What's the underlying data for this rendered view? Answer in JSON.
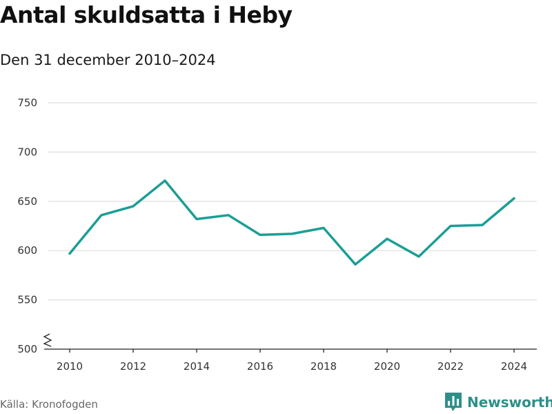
{
  "title": "Antal skuldsatta i Heby",
  "subtitle": "Den 31 december 2010–2024",
  "source": "Källa: Kronofogden",
  "brand": {
    "name": "Newsworthy",
    "icon": "bar-chart-logo-icon"
  },
  "colors": {
    "line": "#1a9e95",
    "grid": "#dddddd",
    "axis": "#222222",
    "brand": "#2e8f88"
  },
  "chart_data": {
    "type": "line",
    "title": "Antal skuldsatta i Heby",
    "subtitle": "Den 31 december 2010–2024",
    "xlabel": "",
    "ylabel": "",
    "x": [
      2010,
      2011,
      2012,
      2013,
      2014,
      2015,
      2016,
      2017,
      2018,
      2019,
      2020,
      2021,
      2022,
      2023,
      2024
    ],
    "values": [
      597,
      636,
      645,
      671,
      632,
      636,
      616,
      617,
      623,
      586,
      612,
      594,
      625,
      626,
      653
    ],
    "xlim": [
      2010,
      2024
    ],
    "ylim": [
      500,
      750
    ],
    "x_ticks": [
      "2010",
      "2012",
      "2014",
      "2016",
      "2018",
      "2020",
      "2022",
      "2024"
    ],
    "y_ticks": [
      "500",
      "550",
      "600",
      "650",
      "700",
      "750"
    ],
    "grid": true,
    "y_axis_break": true
  }
}
